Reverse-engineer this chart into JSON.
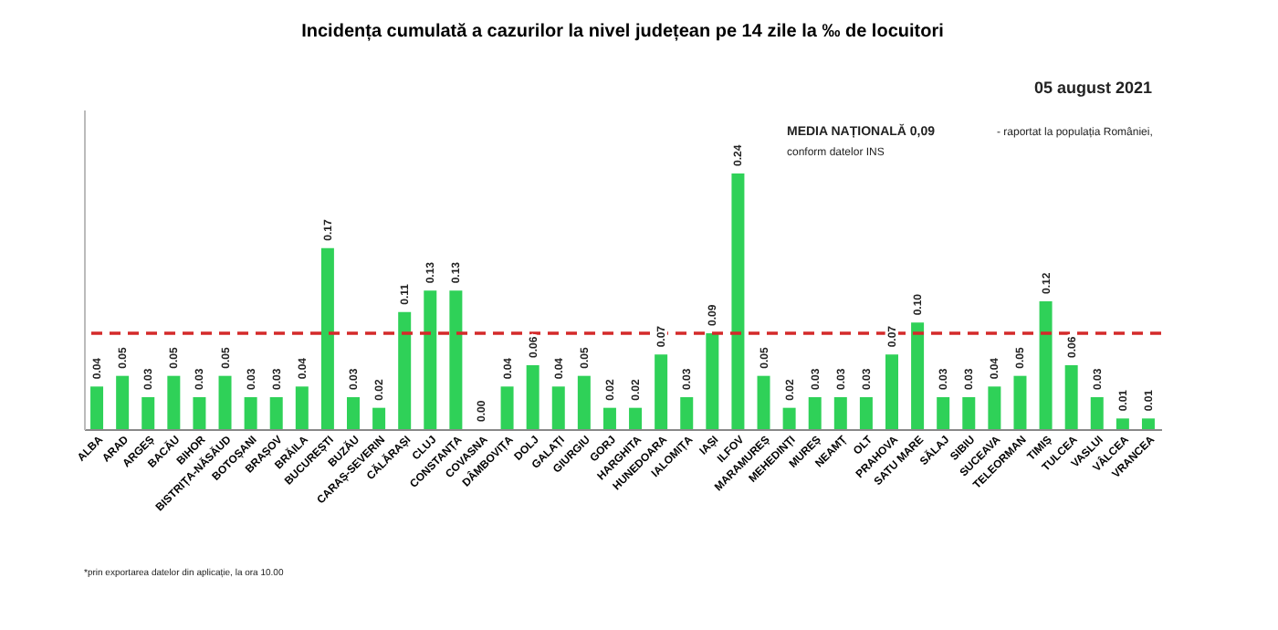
{
  "chart_data": {
    "type": "bar",
    "title": "Incidența cumulată a cazurilor la nivel județean pe 14 zile   la ‰ de locuitori",
    "categories": [
      "ALBA",
      "ARAD",
      "ARGEȘ",
      "BACĂU",
      "BIHOR",
      "BISTRIȚA-NĂSĂUD",
      "BOTOȘANI",
      "BRAȘOV",
      "BRĂILA",
      "BUCUREȘTI",
      "BUZĂU",
      "CARAȘ-SEVERIN",
      "CĂLĂRAȘI",
      "CLUJ",
      "CONSTANȚA",
      "COVASNA",
      "DÂMBOVIȚA",
      "DOLJ",
      "GALAȚI",
      "GIURGIU",
      "GORJ",
      "HARGHITA",
      "HUNEDOARA",
      "IALOMIȚA",
      "IAȘI",
      "ILFOV",
      "MARAMUREȘ",
      "MEHEDINȚI",
      "MUREȘ",
      "NEAMȚ",
      "OLT",
      "PRAHOVA",
      "SATU MARE",
      "SĂLAJ",
      "SIBIU",
      "SUCEAVA",
      "TELEORMAN",
      "TIMIȘ",
      "TULCEA",
      "VASLUI",
      "VÂLCEA",
      "VRANCEA"
    ],
    "values": [
      0.04,
      0.05,
      0.03,
      0.05,
      0.03,
      0.05,
      0.03,
      0.03,
      0.04,
      0.17,
      0.03,
      0.02,
      0.11,
      0.13,
      0.13,
      0.0,
      0.04,
      0.06,
      0.04,
      0.05,
      0.02,
      0.02,
      0.07,
      0.03,
      0.09,
      0.24,
      0.05,
      0.02,
      0.03,
      0.03,
      0.03,
      0.07,
      0.1,
      0.03,
      0.03,
      0.04,
      0.05,
      0.12,
      0.06,
      0.03,
      0.01,
      0.01
    ],
    "color": "#2fd158",
    "ylim": [
      0,
      0.3
    ],
    "tick_labels": "x",
    "value_labels": [
      "0.04",
      "0.05",
      "0.03",
      "0.05",
      "0.03",
      "0.05",
      "0.03",
      "0.03",
      "0.04",
      "0.17",
      "0.03",
      "0.02",
      "0.11",
      "0.13",
      "0.13",
      "0.00",
      "0.04",
      "0.06",
      "0.04",
      "0.05",
      "0.02",
      "0.02",
      "0.07",
      "0.03",
      "0.09",
      "0.24",
      "0.05",
      "0.02",
      "0.03",
      "0.03",
      "0.03",
      "0.07",
      "0.10",
      "0.03",
      "0.03",
      "0.04",
      "0.05",
      "0.12",
      "0.06",
      "0.03",
      "0.01",
      "0.01"
    ],
    "grid": false,
    "ref_lines": [
      {
        "axis": "y",
        "value": 0.09,
        "label": "MEDIA NAȚIONALĂ 0,09 - raportat la populația României, conform datelor INS",
        "color": "#d42a2a",
        "line_style": "dashed"
      }
    ],
    "annotations": [
      "05 august 2021",
      "*prin exportarea datelor din aplicație, la ora 10.00"
    ]
  }
}
